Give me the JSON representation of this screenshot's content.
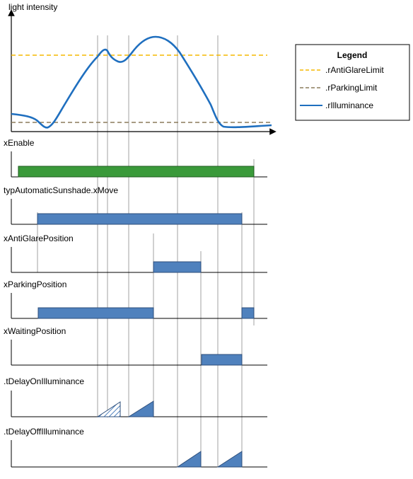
{
  "chart": {
    "ylabel": "light intensity"
  },
  "legend": {
    "title": "Legend",
    "items": [
      {
        "label": ".rAntiGlareLimit",
        "color": "#f5b800",
        "style": "dashed"
      },
      {
        "label": ".rParkingLimit",
        "color": "#8c7c5c",
        "style": "dashed"
      },
      {
        "label": ".rIlluminance",
        "color": "#1f6fbf",
        "style": "solid"
      }
    ]
  },
  "signals": [
    {
      "label": "xEnable",
      "color": "#3a9a3a"
    },
    {
      "label": "typAutomaticSunshade.xMove",
      "color": "#4f81bd"
    },
    {
      "label": "xAntiGlarePosition",
      "color": "#4f81bd"
    },
    {
      "label": "xParkingPosition",
      "color": "#4f81bd"
    },
    {
      "label": "xWaitingPosition",
      "color": "#4f81bd"
    },
    {
      "label": ".tDelayOnIlluminance",
      "color": "#4f81bd"
    },
    {
      "label": ".tDelayOffIlluminance",
      "color": "#4f81bd"
    }
  ]
}
